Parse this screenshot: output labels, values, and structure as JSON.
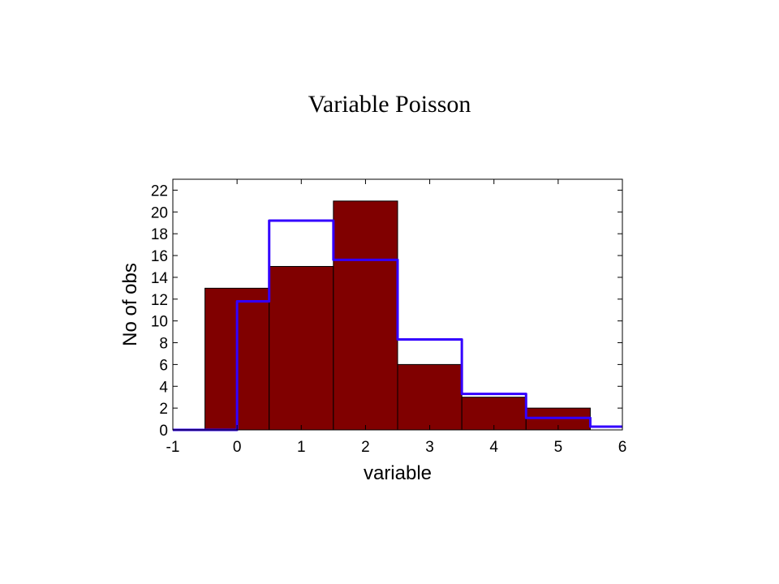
{
  "title": "Variable Poisson",
  "chart_data": {
    "type": "bar",
    "title": "Variable Poisson",
    "xlabel": "variable",
    "ylabel": "No of obs",
    "xlim": [
      -1,
      6
    ],
    "ylim": [
      0,
      23
    ],
    "xticks": [
      -1,
      0,
      1,
      2,
      3,
      4,
      5,
      6
    ],
    "yticks": [
      0,
      2,
      4,
      6,
      8,
      10,
      12,
      14,
      16,
      18,
      20,
      22
    ],
    "bins": [
      {
        "x": 0,
        "count": 13
      },
      {
        "x": 1,
        "count": 15
      },
      {
        "x": 2,
        "count": 21
      },
      {
        "x": 3,
        "count": 6
      },
      {
        "x": 4,
        "count": 3
      },
      {
        "x": 5,
        "count": 2
      }
    ],
    "bar_color": "#800000",
    "expected_curve": {
      "color": "#3300ff",
      "points": [
        [
          -1,
          0
        ],
        [
          0,
          0
        ],
        [
          0,
          11.8
        ],
        [
          0.5,
          11.8
        ],
        [
          0.5,
          19.2
        ],
        [
          1.5,
          19.2
        ],
        [
          1.5,
          15.6
        ],
        [
          2.5,
          15.6
        ],
        [
          2.5,
          8.3
        ],
        [
          3.5,
          8.3
        ],
        [
          3.5,
          3.3
        ],
        [
          4.5,
          3.3
        ],
        [
          4.5,
          1.1
        ],
        [
          5.5,
          1.1
        ],
        [
          5.5,
          0.3
        ],
        [
          6,
          0.3
        ]
      ]
    },
    "grid": false
  }
}
